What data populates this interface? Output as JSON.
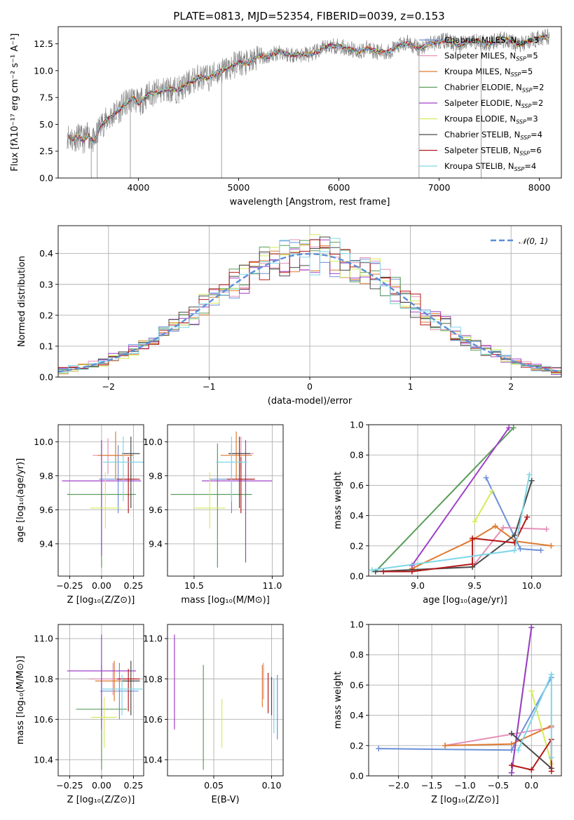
{
  "figure_title": "PLATE=0813, MJD=52354, FIBERID=0039, z=0.153",
  "colors": {
    "Chabrier MILES": "#6b8fd8",
    "Salpeter MILES": "#e58fb8",
    "Kroupa MILES": "#e07a2e",
    "Chabrier ELODIE": "#5a9e5a",
    "Salpeter ELODIE": "#a040c8",
    "Kroupa ELODIE": "#d4ec5a",
    "Chabrier STELIB": "#4a4a4a",
    "Salpeter STELIB": "#b51a1a",
    "Kroupa STELIB": "#7fd6e8",
    "data": "#888888",
    "normal": "#5b8fd6"
  },
  "chart_data": [
    {
      "id": "spectrum",
      "type": "line",
      "xlabel": "wavelength [Angstrom, rest frame]",
      "ylabel": "Flux [fλ10⁻¹⁷ erg cm⁻² s⁻¹ A⁻¹]",
      "xlim": [
        3200,
        8220
      ],
      "ylim": [
        0,
        14.1
      ],
      "xticks": [
        "4000",
        "5000",
        "6000",
        "7000",
        "8000"
      ],
      "yticks": [
        "0.0",
        "2.5",
        "5.0",
        "7.5",
        "10.0",
        "12.5"
      ],
      "legend_position": "top-right",
      "legend": [
        {
          "name": "Chabrier MILES",
          "nssp": "3"
        },
        {
          "name": "Salpeter MILES",
          "nssp": "5"
        },
        {
          "name": "Kroupa MILES",
          "nssp": "5"
        },
        {
          "name": "Chabrier ELODIE",
          "nssp": "2"
        },
        {
          "name": "Salpeter ELODIE",
          "nssp": "2"
        },
        {
          "name": "Kroupa ELODIE",
          "nssp": "3"
        },
        {
          "name": "Chabrier STELIB",
          "nssp": "4"
        },
        {
          "name": "Salpeter STELIB",
          "nssp": "6"
        },
        {
          "name": "Kroupa STELIB",
          "nssp": "4"
        }
      ],
      "model_curve": {
        "x": [
          3290,
          3350,
          3400,
          3450,
          3500,
          3560,
          3620,
          3700,
          3800,
          3880,
          3950,
          4000,
          4100,
          4200,
          4300,
          4400,
          4500,
          4600,
          4700,
          4800,
          4900,
          5000,
          5100,
          5200,
          5300,
          5400,
          5500,
          5600,
          5700,
          5800,
          5900,
          6000,
          6100,
          6200,
          6300,
          6400,
          6500,
          6600,
          6700,
          6800,
          6900,
          7000,
          7100,
          7200,
          7300,
          7400,
          7500,
          7600,
          7700,
          7800,
          7900,
          8000,
          8100
        ],
        "y": [
          4.0,
          3.6,
          3.9,
          3.5,
          4.0,
          3.3,
          4.9,
          5.5,
          6.3,
          7.0,
          7.5,
          6.9,
          7.8,
          8.0,
          8.3,
          8.2,
          8.8,
          9.4,
          9.3,
          9.9,
          10.2,
          10.8,
          10.6,
          11.4,
          11.3,
          11.8,
          11.5,
          11.5,
          11.5,
          11.8,
          12.3,
          12.3,
          12.0,
          11.8,
          12.1,
          11.7,
          11.8,
          12.3,
          12.6,
          12.0,
          12.5,
          12.7,
          12.8,
          12.3,
          12.8,
          12.7,
          12.5,
          12.9,
          12.9,
          12.4,
          12.8,
          13.0,
          13.2
        ]
      },
      "absorption_features": [
        {
          "x": 3530,
          "y": 0
        },
        {
          "x": 3590,
          "y": 0
        },
        {
          "x": 3920,
          "y": 0
        },
        {
          "x": 4830,
          "y": 0
        },
        {
          "x": 6800,
          "y": 0
        },
        {
          "x": 7420,
          "y": 0
        }
      ]
    },
    {
      "id": "residuals",
      "type": "line",
      "xlabel": "(data-model)/error",
      "ylabel": "Normed distribution",
      "xlim": [
        -2.5,
        2.5
      ],
      "ylim": [
        0,
        0.49
      ],
      "xticks": [
        "−2",
        "−1",
        "0",
        "1",
        "2"
      ],
      "yticks": [
        "0.0",
        "0.1",
        "0.2",
        "0.3",
        "0.4"
      ],
      "legend_position": "top-right",
      "legend": [
        {
          "name": "𝒩(0, 1)"
        }
      ],
      "bin_width": 0.1
    },
    {
      "id": "age_vs_Z",
      "type": "scatter",
      "xlabel": "Z [log₁₀(Z/Z⊙)]",
      "ylabel": "age  [log₁₀(age/yr)]",
      "xlim": [
        -0.34,
        0.33
      ],
      "ylim": [
        9.21,
        10.1
      ],
      "xticks": [
        "−0.25",
        "0.00",
        "0.25"
      ],
      "yticks": [
        "9.4",
        "9.6",
        "9.8",
        "10.0"
      ],
      "points": [
        {
          "series": "Chabrier MILES",
          "x": 0.13,
          "y": 9.78,
          "xerr": [
            0.15,
            0.15
          ],
          "yerr": [
            0.2,
            0.2
          ]
        },
        {
          "series": "Salpeter MILES",
          "x": 0.05,
          "y": 9.92,
          "xerr": [
            0.12,
            0.12
          ],
          "yerr": [
            0.11,
            0.1
          ]
        },
        {
          "series": "Kroupa MILES",
          "x": 0.11,
          "y": 9.92,
          "xerr": [
            0.14,
            0.14
          ],
          "yerr": [
            0.14,
            0.14
          ]
        },
        {
          "series": "Chabrier ELODIE",
          "x": 0.0,
          "y": 9.69,
          "xerr": [
            0.27,
            0.27
          ],
          "yerr": [
            0.43,
            0.3
          ]
        },
        {
          "series": "Salpeter ELODIE",
          "x": 0.0,
          "y": 9.77,
          "xerr": [
            0.31,
            0.31
          ],
          "yerr": [
            0.44,
            0.24
          ]
        },
        {
          "series": "Kroupa ELODIE",
          "x": 0.03,
          "y": 9.61,
          "xerr": [
            0.12,
            0.12
          ],
          "yerr": [
            0.12,
            0.21
          ]
        },
        {
          "series": "Chabrier STELIB",
          "x": 0.23,
          "y": 9.93,
          "xerr": [
            0.07,
            0.07
          ],
          "yerr": [
            0.32,
            0.1
          ]
        },
        {
          "series": "Salpeter STELIB",
          "x": 0.21,
          "y": 9.78,
          "xerr": [
            0.09,
            0.09
          ],
          "yerr": [
            0.2,
            0.13
          ]
        },
        {
          "series": "Kroupa STELIB",
          "x": 0.17,
          "y": 9.88,
          "xerr": [
            0.16,
            0.16
          ],
          "yerr": [
            0.23,
            0.15
          ]
        }
      ]
    },
    {
      "id": "age_vs_mass",
      "type": "scatter",
      "xlabel": "mass [log₁₀(M/M⊙)]",
      "ylabel": "",
      "xlim": [
        10.33,
        11.07
      ],
      "ylim": [
        9.21,
        10.1
      ],
      "xticks": [
        "10.5",
        "11.0"
      ],
      "yticks": [
        "9.4",
        "9.6",
        "9.8",
        "10.0"
      ],
      "points": [
        {
          "series": "Chabrier MILES",
          "x": 10.74,
          "y": 9.78,
          "xerr": [
            0.14,
            0.14
          ],
          "yerr": [
            0.2,
            0.2
          ]
        },
        {
          "series": "Salpeter MILES",
          "x": 10.8,
          "y": 9.93,
          "xerr": [
            0.08,
            0.08
          ],
          "yerr": [
            0.1,
            0.1
          ]
        },
        {
          "series": "Kroupa MILES",
          "x": 10.77,
          "y": 9.92,
          "xerr": [
            0.1,
            0.1
          ],
          "yerr": [
            0.14,
            0.14
          ]
        },
        {
          "series": "Chabrier ELODIE",
          "x": 10.65,
          "y": 9.69,
          "xerr": [
            0.3,
            0.22
          ],
          "yerr": [
            0.43,
            0.3
          ]
        },
        {
          "series": "Salpeter ELODIE",
          "x": 10.83,
          "y": 9.77,
          "xerr": [
            0.28,
            0.17
          ],
          "yerr": [
            0.48,
            0.24
          ]
        },
        {
          "series": "Kroupa ELODIE",
          "x": 10.6,
          "y": 9.61,
          "xerr": [
            0.1,
            0.1
          ],
          "yerr": [
            0.12,
            0.21
          ]
        },
        {
          "series": "Chabrier STELIB",
          "x": 10.79,
          "y": 9.93,
          "xerr": [
            0.07,
            0.07
          ],
          "yerr": [
            0.32,
            0.1
          ]
        },
        {
          "series": "Salpeter STELIB",
          "x": 10.8,
          "y": 9.78,
          "xerr": [
            0.09,
            0.09
          ],
          "yerr": [
            0.2,
            0.13
          ]
        },
        {
          "series": "Kroupa STELIB",
          "x": 10.74,
          "y": 9.88,
          "xerr": [
            0.1,
            0.1
          ],
          "yerr": [
            0.23,
            0.15
          ]
        }
      ]
    },
    {
      "id": "weight_vs_age",
      "type": "line",
      "xlabel": "age  [log₁₀(age/yr)]",
      "ylabel": "mass weight",
      "xlim": [
        8.57,
        10.26
      ],
      "ylim": [
        0,
        1.0
      ],
      "xticks": [
        "9.0",
        "9.5",
        "10.0"
      ],
      "yticks": [
        "0.0",
        "0.2",
        "0.4",
        "0.6",
        "0.8",
        "1.0"
      ],
      "series": [
        {
          "name": "Chabrier MILES",
          "x": [
            9.6,
            9.9,
            10.08
          ],
          "y": [
            0.65,
            0.18,
            0.17
          ]
        },
        {
          "name": "Salpeter MILES",
          "x": [
            9.5,
            9.75,
            10.13
          ],
          "y": [
            0.08,
            0.32,
            0.31
          ]
        },
        {
          "name": "Kroupa MILES",
          "x": [
            8.95,
            9.48,
            9.68,
            9.86,
            10.17
          ],
          "y": [
            0.05,
            0.24,
            0.33,
            0.23,
            0.2
          ]
        },
        {
          "name": "Chabrier ELODIE",
          "x": [
            8.63,
            9.84
          ],
          "y": [
            0.03,
            0.98
          ]
        },
        {
          "name": "Salpeter ELODIE",
          "x": [
            8.95,
            9.8
          ],
          "y": [
            0.07,
            0.98
          ]
        },
        {
          "name": "Kroupa ELODIE",
          "x": [
            9.5,
            9.65
          ],
          "y": [
            0.36,
            0.56
          ]
        },
        {
          "name": "Chabrier STELIB",
          "x": [
            8.63,
            9.48,
            9.85,
            10.0
          ],
          "y": [
            0.03,
            0.06,
            0.27,
            0.63
          ]
        },
        {
          "name": "Salpeter STELIB",
          "x": [
            8.7,
            8.95,
            9.48,
            9.48,
            9.85,
            9.96
          ],
          "y": [
            0.03,
            0.03,
            0.08,
            0.25,
            0.22,
            0.39
          ]
        },
        {
          "name": "Kroupa STELIB",
          "x": [
            8.6,
            9.85,
            9.98
          ],
          "y": [
            0.04,
            0.17,
            0.67
          ]
        }
      ]
    },
    {
      "id": "mass_vs_Z",
      "type": "scatter",
      "xlabel": "Z [log₁₀(Z/Z⊙)]",
      "ylabel": "mass [log₁₀(M/M⊙)]",
      "xlim": [
        -0.34,
        0.33
      ],
      "ylim": [
        10.32,
        11.07
      ],
      "xticks": [
        "−0.25",
        "0.00",
        "0.25"
      ],
      "yticks": [
        "10.4",
        "10.6",
        "10.8",
        "11.0"
      ],
      "points": [
        {
          "series": "Chabrier MILES",
          "x": 0.14,
          "y": 10.74,
          "xerr": [
            0.15,
            0.15
          ],
          "yerr": [
            0.14,
            0.14
          ]
        },
        {
          "series": "Salpeter MILES",
          "x": 0.09,
          "y": 10.8,
          "xerr": [
            0.19,
            0.19
          ],
          "yerr": [
            0.08,
            0.08
          ]
        },
        {
          "series": "Kroupa MILES",
          "x": 0.1,
          "y": 10.79,
          "xerr": [
            0.15,
            0.15
          ],
          "yerr": [
            0.1,
            0.1
          ]
        },
        {
          "series": "Chabrier ELODIE",
          "x": 0.0,
          "y": 10.65,
          "xerr": [
            0.2,
            0.2
          ],
          "yerr": [
            0.3,
            0.22
          ]
        },
        {
          "series": "Salpeter ELODIE",
          "x": 0.0,
          "y": 10.84,
          "xerr": [
            0.27,
            0.27
          ],
          "yerr": [
            0.29,
            0.18
          ]
        },
        {
          "series": "Kroupa ELODIE",
          "x": 0.02,
          "y": 10.61,
          "xerr": [
            0.1,
            0.1
          ],
          "yerr": [
            0.15,
            0.1
          ]
        },
        {
          "series": "Chabrier STELIB",
          "x": 0.23,
          "y": 10.79,
          "xerr": [
            0.07,
            0.07
          ],
          "yerr": [
            0.17,
            0.1
          ]
        },
        {
          "series": "Salpeter STELIB",
          "x": 0.21,
          "y": 10.8,
          "xerr": [
            0.09,
            0.09
          ],
          "yerr": [
            0.16,
            0.05
          ]
        },
        {
          "series": "Kroupa STELIB",
          "x": 0.16,
          "y": 10.75,
          "xerr": [
            0.16,
            0.16
          ],
          "yerr": [
            0.13,
            0.07
          ]
        }
      ]
    },
    {
      "id": "mass_vs_ebv",
      "type": "scatter",
      "xlabel": "E(B-V)",
      "ylabel": "",
      "xlim": [
        0.01,
        0.11
      ],
      "ylim": [
        10.32,
        11.07
      ],
      "xticks": [
        "0.05",
        "0.10"
      ],
      "yticks": [
        "10.4",
        "10.6",
        "10.8",
        "11.0"
      ],
      "points": [
        {
          "series": "Chabrier MILES",
          "x": 0.105,
          "y": 10.68,
          "xerr": [
            0,
            0
          ],
          "yerr": [
            0.18,
            0.14
          ]
        },
        {
          "series": "Salpeter MILES",
          "x": 0.093,
          "y": 10.8,
          "xerr": [
            0,
            0
          ],
          "yerr": [
            0.1,
            0.08
          ]
        },
        {
          "series": "Kroupa MILES",
          "x": 0.092,
          "y": 10.78,
          "xerr": [
            0,
            0
          ],
          "yerr": [
            0.12,
            0.09
          ]
        },
        {
          "series": "Chabrier ELODIE",
          "x": 0.041,
          "y": 10.61,
          "xerr": [
            0,
            0
          ],
          "yerr": [
            0.26,
            0.26
          ]
        },
        {
          "series": "Salpeter ELODIE",
          "x": 0.016,
          "y": 10.78,
          "xerr": [
            0,
            0
          ],
          "yerr": [
            0.23,
            0.24
          ]
        },
        {
          "series": "Kroupa ELODIE",
          "x": 0.057,
          "y": 10.58,
          "xerr": [
            0,
            0
          ],
          "yerr": [
            0.12,
            0.12
          ]
        },
        {
          "series": "Chabrier STELIB",
          "x": 0.1,
          "y": 10.76,
          "xerr": [
            0,
            0
          ],
          "yerr": [
            0.14,
            0.05
          ]
        },
        {
          "series": "Salpeter STELIB",
          "x": 0.097,
          "y": 10.76,
          "xerr": [
            0,
            0
          ],
          "yerr": [
            0.13,
            0.07
          ]
        },
        {
          "series": "Kroupa STELIB",
          "x": 0.102,
          "y": 10.68,
          "xerr": [
            0,
            0
          ],
          "yerr": [
            0.15,
            0.12
          ]
        }
      ]
    },
    {
      "id": "weight_vs_Z",
      "type": "line",
      "xlabel": "Z [log₁₀(Z/Z⊙)]",
      "ylabel": "mass weight",
      "xlim": [
        -2.45,
        0.45
      ],
      "ylim": [
        0,
        1.0
      ],
      "xticks": [
        "−2.0",
        "−1.5",
        "−1.0",
        "−0.5",
        "0.0"
      ],
      "yticks": [
        "0.0",
        "0.2",
        "0.4",
        "0.6",
        "0.8",
        "1.0"
      ],
      "series": [
        {
          "name": "Chabrier MILES",
          "x": [
            -2.3,
            -0.3,
            0.3
          ],
          "y": [
            0.18,
            0.17,
            0.65
          ]
        },
        {
          "name": "Salpeter MILES",
          "x": [
            -1.3,
            0.3
          ],
          "y": [
            0.2,
            0.32
          ]
        },
        {
          "name": "Kroupa MILES",
          "x": [
            -1.3,
            -0.3,
            0.3
          ],
          "y": [
            0.2,
            0.21,
            0.33
          ]
        },
        {
          "name": "Chabrier ELODIE",
          "x": [
            -0.3,
            0.0
          ],
          "y": [
            0.02,
            0.98
          ]
        },
        {
          "name": "Salpeter ELODIE",
          "x": [
            -0.3,
            0.0
          ],
          "y": [
            0.02,
            0.98
          ]
        },
        {
          "name": "Kroupa ELODIE",
          "x": [
            0.0,
            0.3
          ],
          "y": [
            0.56,
            0.08
          ]
        },
        {
          "name": "Chabrier STELIB",
          "x": [
            -0.3,
            0.3
          ],
          "y": [
            0.28,
            0.05
          ]
        },
        {
          "name": "Salpeter STELIB",
          "x": [
            -0.3,
            0.0,
            0.3,
            0.3
          ],
          "y": [
            0.07,
            0.04,
            0.24,
            0.03
          ]
        },
        {
          "name": "Kroupa STELIB",
          "x": [
            -0.2,
            0.3,
            0.3
          ],
          "y": [
            0.17,
            0.67,
            0.12
          ]
        }
      ]
    }
  ]
}
